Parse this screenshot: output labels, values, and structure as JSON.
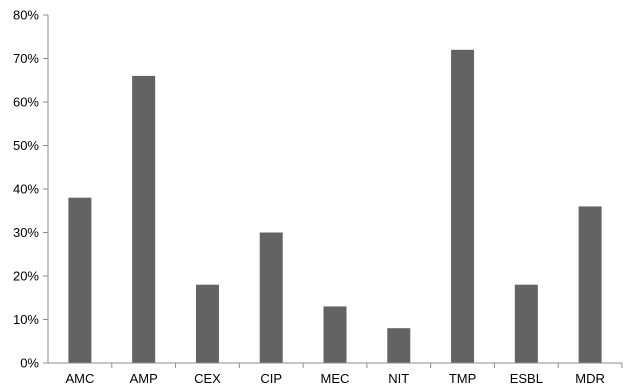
{
  "chart_data": {
    "type": "bar",
    "title": "",
    "xlabel": "",
    "ylabel": "",
    "categories": [
      "AMC",
      "AMP",
      "CEX",
      "CIP",
      "MEC",
      "NIT",
      "TMP",
      "ESBL",
      "MDR"
    ],
    "values": [
      38,
      66,
      18,
      30,
      13,
      8,
      72,
      18,
      36
    ],
    "ylim": [
      0,
      80
    ],
    "yticks": [
      0,
      10,
      20,
      30,
      40,
      50,
      60,
      70,
      80
    ],
    "ytick_labels": [
      "0%",
      "10%",
      "20%",
      "30%",
      "40%",
      "50%",
      "60%",
      "70%",
      "80%"
    ],
    "grid": false,
    "legend": "none",
    "bar_color": "#636363",
    "axis_color": "#8c8c8c"
  }
}
